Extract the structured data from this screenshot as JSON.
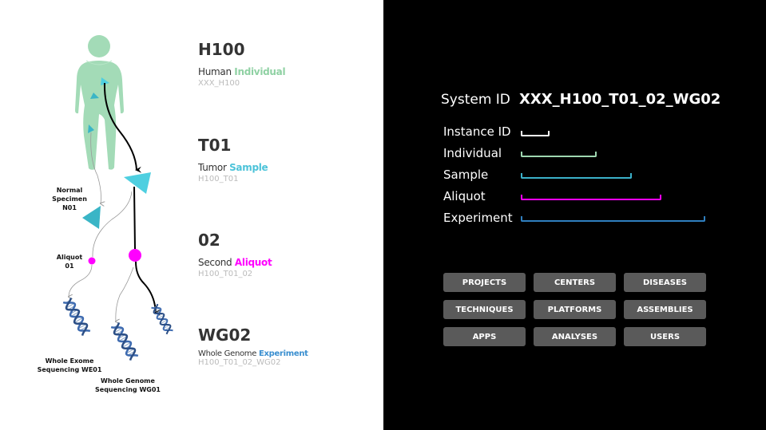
{
  "levels": [
    {
      "code": "H100",
      "desc_plain": "Human ",
      "desc_accent": "Individual",
      "accent": "#8fd1a3",
      "id": "XXX_H100"
    },
    {
      "code": "T01",
      "desc_plain": "Tumor ",
      "desc_accent": "Sample",
      "accent": "#4cc3d9",
      "id": "H100_T01"
    },
    {
      "code": "02",
      "desc_plain": "Second ",
      "desc_accent": "Aliquot",
      "accent": "#ff00ff",
      "id": "H100_T01_02"
    },
    {
      "code": "WG02",
      "desc_plain": "Whole Genome ",
      "desc_accent": "Experiment",
      "accent": "#3a8fd0",
      "id": "H100_T01_02_WG02"
    }
  ],
  "labels": {
    "normal_specimen": [
      "Normal",
      "Specimen",
      "N01"
    ],
    "aliquot01": [
      "Aliquot",
      "01"
    ],
    "we01": [
      "Whole Exome",
      "Sequencing WE01"
    ],
    "wg01": [
      "Whole Genome",
      "Sequencing WG01"
    ]
  },
  "system": {
    "label": "System ID",
    "value": "XXX_H100_T01_02_WG02"
  },
  "id_parts": [
    {
      "label": "Instance ID",
      "color": "#ffffff",
      "extent": "XXX"
    },
    {
      "label": "Individual",
      "color": "#9ed6b0",
      "extent": "XXX_H100"
    },
    {
      "label": "Sample",
      "color": "#3bb0c9",
      "extent": "XXX_H100_T01"
    },
    {
      "label": "Aliquot",
      "color": "#ff00ff",
      "extent": "XXX_H100_T01_02"
    },
    {
      "label": "Experiment",
      "color": "#2f7fbf",
      "extent": "XXX_H100_T01_02_WG02"
    }
  ],
  "buttons": [
    "PROJECTS",
    "CENTERS",
    "DISEASES",
    "TECHNIQUES",
    "PLATFORMS",
    "ASSEMBLIES",
    "APPS",
    "ANALYSES",
    "USERS"
  ]
}
